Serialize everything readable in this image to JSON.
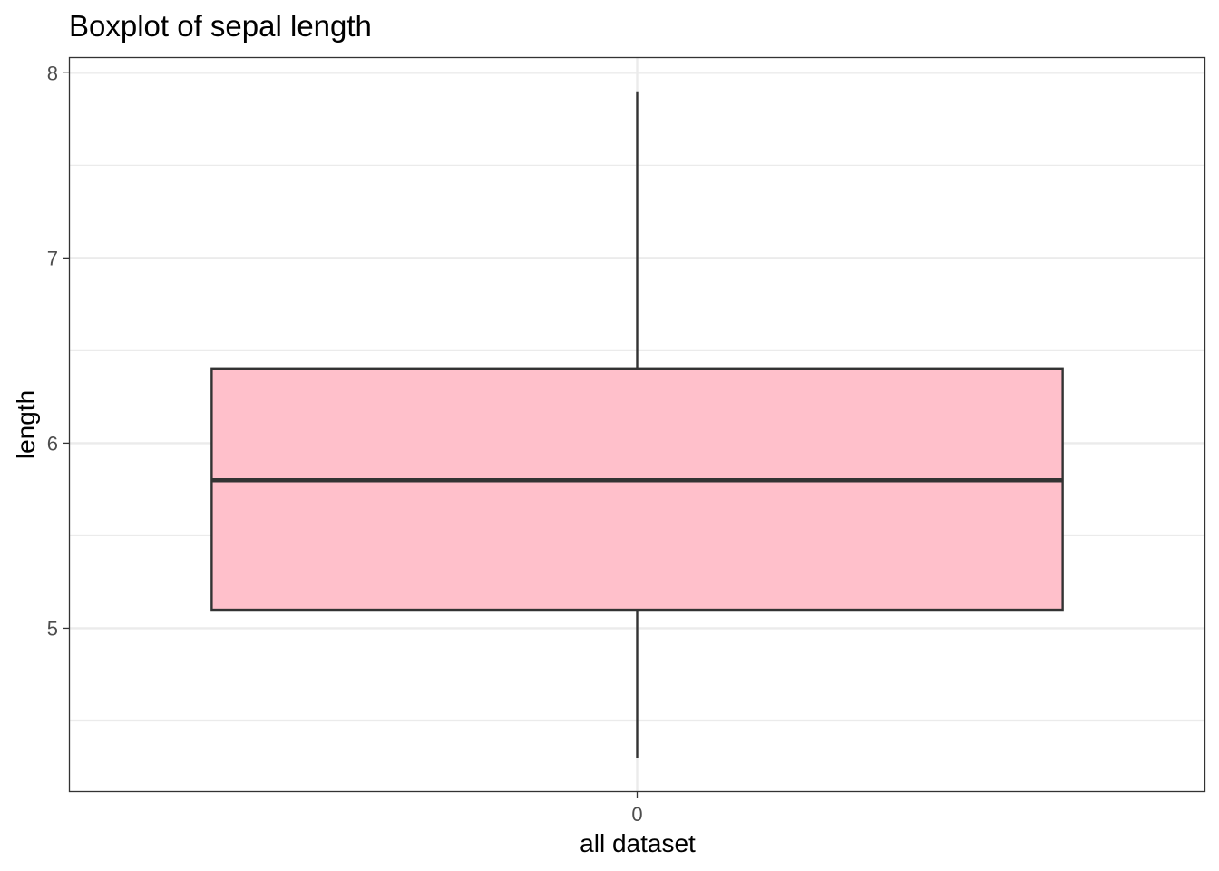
{
  "chart_data": {
    "type": "boxplot",
    "title": "Boxplot of sepal length",
    "xlabel": "all dataset",
    "ylabel": "length",
    "categories": [
      "0"
    ],
    "ylim": [
      4.12,
      8.08
    ],
    "yticks": [
      5,
      6,
      7,
      8
    ],
    "ytick_labels": [
      "5",
      "6",
      "7",
      "8"
    ],
    "grid": true,
    "boxes": [
      {
        "category": "0",
        "min": 4.3,
        "q1": 5.1,
        "median": 5.8,
        "q3": 6.4,
        "max": 7.9
      }
    ],
    "colors": {
      "box_fill": "#ffc0cb",
      "box_stroke": "#333333",
      "grid": "#ebebeb",
      "panel_border": "#333333"
    }
  }
}
